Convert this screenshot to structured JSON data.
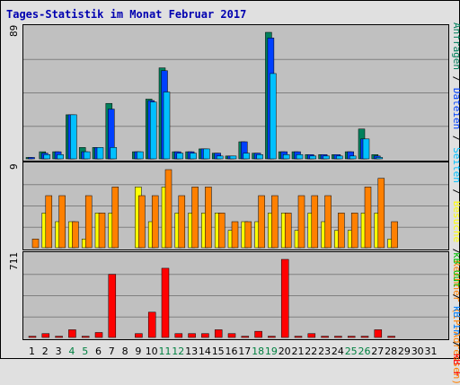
{
  "title": "Tages-Statistik im Monat Februar 2017",
  "legend": {
    "top": [
      {
        "label": "Anfragen",
        "color": "#00805c"
      },
      {
        "label": " / ",
        "color": "#000000"
      },
      {
        "label": "Dateien",
        "color": "#0040ff"
      },
      {
        "label": " / ",
        "color": "#000000"
      },
      {
        "label": "Seiten",
        "color": "#00c0ff"
      },
      {
        "label": " / ",
        "color": "#000000"
      },
      {
        "label": "Besuche",
        "color": "#ffff00"
      },
      {
        "label": " / ",
        "color": "#000000"
      },
      {
        "label": "Rechner (IP-Adressen)",
        "color": "#ff8000"
      }
    ],
    "bottom": [
      {
        "label": "kB Out",
        "color": "#00c000"
      },
      {
        "label": " / ",
        "color": "#000000"
      },
      {
        "label": "kB In",
        "color": "#0080ff"
      },
      {
        "label": " / ",
        "color": "#000000"
      },
      {
        "label": "kB F",
        "color": "#ff0000"
      }
    ]
  },
  "chart_data": [
    {
      "type": "bar",
      "panel": "requests",
      "ymax_label": "89",
      "ylim": [
        0,
        89
      ],
      "categories": [
        "1",
        "2",
        "3",
        "4",
        "5",
        "6",
        "7",
        "8",
        "9",
        "10",
        "11",
        "12",
        "13",
        "14",
        "15",
        "16",
        "17",
        "18",
        "19",
        "20",
        "21",
        "22",
        "23",
        "24",
        "25",
        "26",
        "27",
        "28",
        "29",
        "30",
        "31"
      ],
      "series": [
        {
          "name": "Anfragen",
          "color": "#00805c",
          "values": [
            1,
            5,
            5,
            31,
            8,
            8,
            39,
            0,
            5,
            42,
            64,
            5,
            5,
            7,
            4,
            2,
            12,
            4,
            89,
            5,
            5,
            3,
            3,
            3,
            5,
            21,
            3,
            0,
            0,
            0,
            0
          ]
        },
        {
          "name": "Dateien",
          "color": "#0040ff",
          "values": [
            1,
            4,
            5,
            31,
            5,
            8,
            35,
            0,
            5,
            41,
            62,
            5,
            5,
            7,
            4,
            2,
            12,
            4,
            85,
            5,
            5,
            3,
            3,
            3,
            5,
            14,
            2,
            0,
            0,
            0,
            0
          ]
        },
        {
          "name": "Seiten",
          "color": "#00c0ff",
          "values": [
            0,
            3,
            3,
            31,
            5,
            8,
            8,
            0,
            5,
            40,
            47,
            4,
            4,
            7,
            2,
            2,
            4,
            3,
            60,
            3,
            3,
            2,
            2,
            2,
            2,
            14,
            1,
            0,
            0,
            0,
            0
          ]
        }
      ]
    },
    {
      "type": "bar",
      "panel": "visits",
      "ymax_label": "9",
      "ylim": [
        0,
        9
      ],
      "categories": [
        "1",
        "2",
        "3",
        "4",
        "5",
        "6",
        "7",
        "8",
        "9",
        "10",
        "11",
        "12",
        "13",
        "14",
        "15",
        "16",
        "17",
        "18",
        "19",
        "20",
        "21",
        "22",
        "23",
        "24",
        "25",
        "26",
        "27",
        "28",
        "29",
        "30",
        "31"
      ],
      "series": [
        {
          "name": "Besuche",
          "color": "#ffff00",
          "values": [
            0,
            4,
            3,
            3,
            1,
            4,
            4,
            0,
            7,
            3,
            7,
            4,
            4,
            4,
            4,
            2,
            3,
            3,
            4,
            4,
            2,
            4,
            3,
            2,
            2,
            4,
            4,
            1,
            0,
            0,
            0
          ]
        },
        {
          "name": "Rechner (IP-Adressen)",
          "color": "#ff8000",
          "values": [
            1,
            6,
            6,
            3,
            6,
            4,
            7,
            0,
            6,
            6,
            9,
            6,
            7,
            7,
            4,
            3,
            3,
            6,
            6,
            4,
            6,
            6,
            6,
            4,
            4,
            7,
            8,
            3,
            0,
            0,
            0
          ]
        }
      ]
    },
    {
      "type": "bar",
      "panel": "traffic",
      "ymax_label": "711",
      "ylim": [
        0,
        711
      ],
      "categories": [
        "1",
        "2",
        "3",
        "4",
        "5",
        "6",
        "7",
        "8",
        "9",
        "10",
        "11",
        "12",
        "13",
        "14",
        "15",
        "16",
        "17",
        "18",
        "19",
        "20",
        "21",
        "22",
        "23",
        "24",
        "25",
        "26",
        "27",
        "28",
        "29",
        "30",
        "31"
      ],
      "series": [
        {
          "name": "kB F",
          "color": "#ff0000",
          "values": [
            11,
            35,
            11,
            70,
            11,
            45,
            575,
            0,
            35,
            230,
            630,
            35,
            35,
            35,
            70,
            35,
            11,
            56,
            11,
            711,
            11,
            35,
            11,
            11,
            11,
            11,
            70,
            11,
            0,
            0,
            0
          ]
        }
      ]
    }
  ],
  "weekend_days": [
    "4",
    "5",
    "11",
    "12",
    "18",
    "19",
    "25",
    "26"
  ],
  "colors": {
    "weekend": "#008040",
    "weekday": "#000000",
    "panel_bg": "#c0c0c0",
    "grid": "#808080"
  }
}
